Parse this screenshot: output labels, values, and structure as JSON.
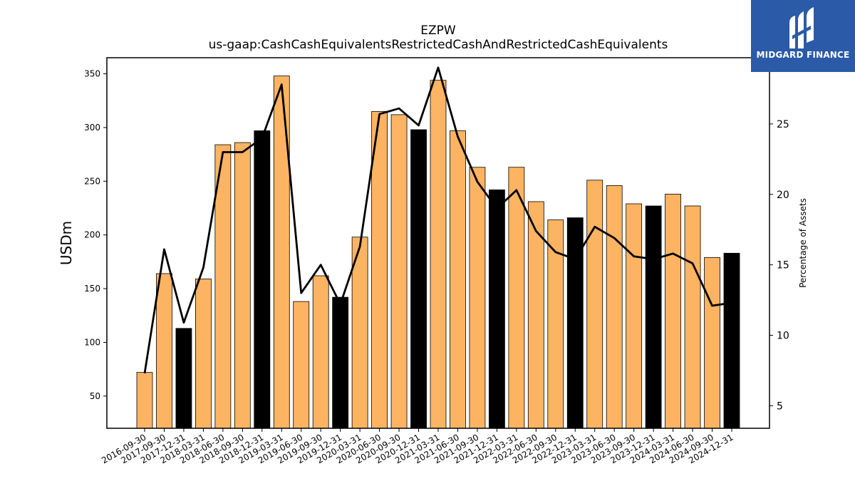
{
  "chart_data": {
    "type": "bar",
    "title": "EZPW",
    "subtitle": "us-gaap:CashCashEquivalentsRestrictedCashAndRestrictedCashEquivalents",
    "ylabel": "USDm",
    "ylabel_right": "Percentage of Assets",
    "ylim": [
      20,
      365
    ],
    "ylim_right": [
      3.4,
      29.7
    ],
    "yticks": [
      50,
      100,
      150,
      200,
      250,
      300,
      350
    ],
    "yticks_right": [
      5,
      10,
      15,
      20,
      25
    ],
    "categories": [
      "2016-09-30",
      "2017-09-30",
      "2017-12-31",
      "2018-03-31",
      "2018-06-30",
      "2018-09-30",
      "2018-12-31",
      "2019-03-31",
      "2019-06-30",
      "2019-09-30",
      "2019-12-31",
      "2020-03-31",
      "2020-06-30",
      "2020-09-30",
      "2020-12-31",
      "2021-03-31",
      "2021-06-30",
      "2021-09-30",
      "2021-12-31",
      "2022-03-31",
      "2022-06-30",
      "2022-09-30",
      "2022-12-31",
      "2023-03-31",
      "2023-06-30",
      "2023-09-30",
      "2023-12-31",
      "2024-03-31",
      "2024-06-30",
      "2024-09-30",
      "2024-12-31"
    ],
    "series": [
      {
        "kind": "bar",
        "values": [
          72,
          164,
          113,
          159,
          284,
          286,
          297,
          348,
          138,
          162,
          142,
          198,
          315,
          312,
          298,
          344,
          297,
          263,
          242,
          263,
          231,
          214,
          216,
          251,
          246,
          229,
          227,
          238,
          227,
          179,
          183
        ],
        "colors": [
          "#fdb462",
          "#fdb462",
          "#000000",
          "#fdb462",
          "#fdb462",
          "#fdb462",
          "#000000",
          "#fdb462",
          "#fdb462",
          "#fdb462",
          "#000000",
          "#fdb462",
          "#fdb462",
          "#fdb462",
          "#000000",
          "#fdb462",
          "#fdb462",
          "#fdb462",
          "#000000",
          "#fdb462",
          "#fdb462",
          "#fdb462",
          "#000000",
          "#fdb462",
          "#fdb462",
          "#fdb462",
          "#000000",
          "#fdb462",
          "#fdb462",
          "#fdb462",
          "#000000"
        ]
      },
      {
        "kind": "line",
        "axis": "right",
        "color": "#000000",
        "values": [
          7.3,
          16.1,
          10.9,
          14.8,
          23.0,
          23.0,
          24.0,
          27.8,
          13.0,
          15.0,
          12.2,
          16.3,
          25.7,
          26.1,
          24.9,
          29.0,
          24.1,
          20.9,
          19.0,
          20.3,
          17.4,
          15.9,
          15.4,
          17.7,
          16.9,
          15.6,
          15.4,
          15.8,
          15.1,
          12.1,
          12.3
        ]
      }
    ],
    "grid": false,
    "legend": "none"
  },
  "logo": {
    "text": "MIDGARD FINANCE",
    "background": "#2a5aa8"
  }
}
